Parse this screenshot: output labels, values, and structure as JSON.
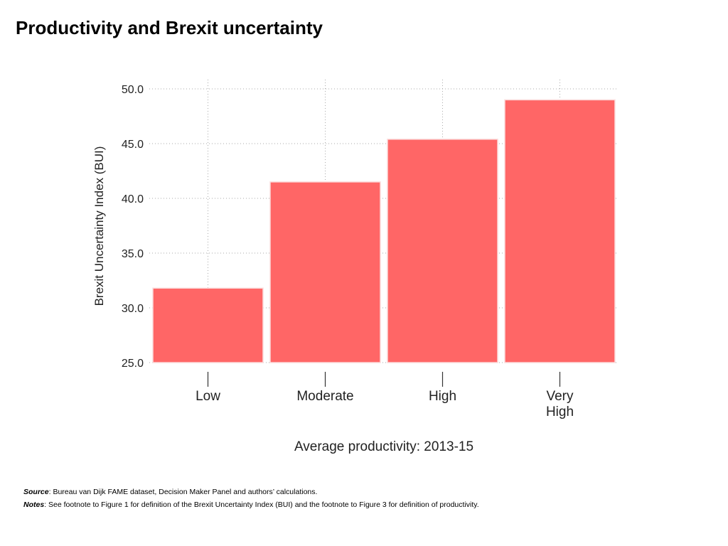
{
  "title": "Productivity and Brexit uncertainty",
  "chart_data": {
    "type": "bar",
    "categories": [
      "Low",
      "Moderate",
      "High",
      "Very\nHigh"
    ],
    "values": [
      31.8,
      41.5,
      45.4,
      49.0
    ],
    "xlabel": "Average productivity: 2013-15",
    "ylabel": "Brexit Uncertainty Index (BUI)",
    "ylim": [
      25,
      50
    ],
    "yticks": [
      "25.0",
      "30.0",
      "35.0",
      "40.0",
      "45.0",
      "50.0"
    ],
    "grid": true,
    "bar_color": "#ff6666"
  },
  "footnotes": {
    "source_label": "Source",
    "source_text": ": Bureau van Dijk FAME dataset, Decision Maker Panel and authors’ calculations.",
    "notes_label": "Notes",
    "notes_text": ": See footnote to Figure 1 for definition of the Brexit Uncertainty Index (BUI) and the footnote to Figure 3 for definition of productivity."
  }
}
